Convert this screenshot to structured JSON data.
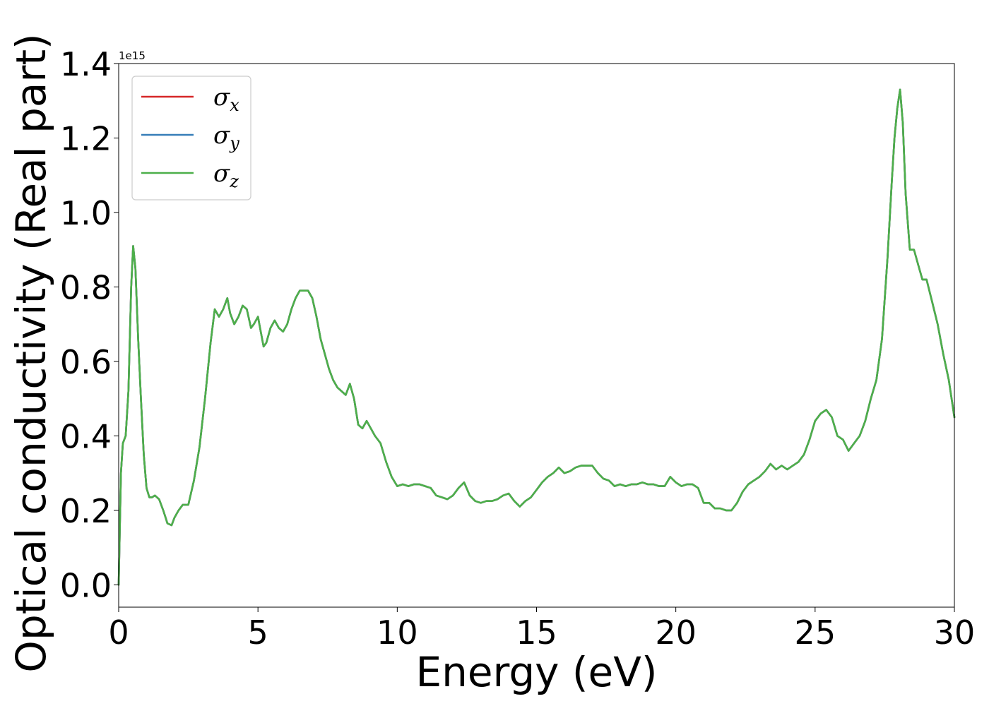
{
  "chart_data": {
    "type": "line",
    "title": "",
    "xlabel": "Energy (eV)",
    "ylabel": "Optical conductivity (Real part)",
    "y_offset_label": "1e15",
    "xlim": [
      0,
      30
    ],
    "ylim": [
      -0.06,
      1.4
    ],
    "xticks": [
      0,
      5,
      10,
      15,
      20,
      25,
      30
    ],
    "yticks": [
      0.0,
      0.2,
      0.4,
      0.6,
      0.8,
      1.0,
      1.2,
      1.4
    ],
    "xtick_labels": [
      "0",
      "5",
      "10",
      "15",
      "20",
      "25",
      "30"
    ],
    "ytick_labels": [
      "0.0",
      "0.2",
      "0.4",
      "0.6",
      "0.8",
      "1.0",
      "1.2",
      "1.4"
    ],
    "grid": false,
    "legend_position": "top-left",
    "x": [
      0.0,
      0.08,
      0.15,
      0.25,
      0.35,
      0.45,
      0.52,
      0.6,
      0.7,
      0.8,
      0.9,
      1.0,
      1.1,
      1.2,
      1.3,
      1.45,
      1.6,
      1.75,
      1.9,
      2.0,
      2.15,
      2.3,
      2.5,
      2.7,
      2.9,
      3.1,
      3.3,
      3.45,
      3.6,
      3.75,
      3.9,
      4.0,
      4.15,
      4.3,
      4.45,
      4.6,
      4.75,
      4.85,
      5.0,
      5.1,
      5.2,
      5.3,
      5.45,
      5.6,
      5.75,
      5.9,
      6.05,
      6.2,
      6.35,
      6.5,
      6.65,
      6.8,
      6.95,
      7.1,
      7.25,
      7.4,
      7.55,
      7.7,
      7.85,
      8.0,
      8.15,
      8.3,
      8.45,
      8.6,
      8.75,
      8.9,
      9.05,
      9.2,
      9.4,
      9.6,
      9.8,
      10.0,
      10.2,
      10.4,
      10.6,
      10.8,
      11.0,
      11.2,
      11.4,
      11.6,
      11.8,
      12.0,
      12.2,
      12.4,
      12.6,
      12.8,
      13.0,
      13.2,
      13.4,
      13.6,
      13.8,
      14.0,
      14.2,
      14.4,
      14.6,
      14.8,
      15.0,
      15.2,
      15.4,
      15.6,
      15.8,
      16.0,
      16.2,
      16.4,
      16.6,
      16.8,
      17.0,
      17.2,
      17.4,
      17.6,
      17.8,
      18.0,
      18.2,
      18.4,
      18.6,
      18.8,
      19.0,
      19.2,
      19.4,
      19.6,
      19.8,
      20.0,
      20.2,
      20.4,
      20.6,
      20.8,
      21.0,
      21.2,
      21.4,
      21.6,
      21.8,
      22.0,
      22.2,
      22.4,
      22.6,
      22.8,
      23.0,
      23.2,
      23.4,
      23.6,
      23.8,
      24.0,
      24.2,
      24.4,
      24.6,
      24.8,
      25.0,
      25.2,
      25.4,
      25.6,
      25.8,
      26.0,
      26.2,
      26.4,
      26.6,
      26.8,
      27.0,
      27.2,
      27.4,
      27.6,
      27.75,
      27.85,
      27.95,
      28.05,
      28.15,
      28.25,
      28.4,
      28.55,
      28.7,
      28.85,
      29.0,
      29.2,
      29.4,
      29.6,
      29.8,
      30.0
    ],
    "series": [
      {
        "name": "σx",
        "color": "#d62728",
        "values": [
          0.0,
          0.3,
          0.38,
          0.4,
          0.52,
          0.8,
          0.91,
          0.85,
          0.66,
          0.5,
          0.35,
          0.26,
          0.235,
          0.235,
          0.24,
          0.23,
          0.2,
          0.165,
          0.16,
          0.18,
          0.2,
          0.215,
          0.215,
          0.28,
          0.37,
          0.5,
          0.65,
          0.74,
          0.72,
          0.74,
          0.77,
          0.73,
          0.7,
          0.72,
          0.75,
          0.74,
          0.69,
          0.7,
          0.72,
          0.68,
          0.64,
          0.65,
          0.69,
          0.71,
          0.69,
          0.68,
          0.7,
          0.74,
          0.77,
          0.79,
          0.79,
          0.79,
          0.77,
          0.72,
          0.66,
          0.62,
          0.58,
          0.55,
          0.53,
          0.52,
          0.51,
          0.54,
          0.5,
          0.43,
          0.42,
          0.44,
          0.42,
          0.4,
          0.38,
          0.33,
          0.29,
          0.265,
          0.27,
          0.265,
          0.27,
          0.27,
          0.265,
          0.26,
          0.24,
          0.235,
          0.23,
          0.24,
          0.26,
          0.275,
          0.24,
          0.225,
          0.22,
          0.225,
          0.225,
          0.23,
          0.24,
          0.245,
          0.225,
          0.21,
          0.225,
          0.235,
          0.255,
          0.275,
          0.29,
          0.3,
          0.315,
          0.3,
          0.305,
          0.315,
          0.32,
          0.32,
          0.32,
          0.3,
          0.285,
          0.28,
          0.265,
          0.27,
          0.265,
          0.27,
          0.27,
          0.275,
          0.27,
          0.27,
          0.265,
          0.265,
          0.29,
          0.275,
          0.265,
          0.27,
          0.27,
          0.26,
          0.22,
          0.22,
          0.205,
          0.205,
          0.2,
          0.2,
          0.22,
          0.25,
          0.27,
          0.28,
          0.29,
          0.305,
          0.325,
          0.31,
          0.32,
          0.31,
          0.32,
          0.33,
          0.35,
          0.39,
          0.44,
          0.46,
          0.47,
          0.45,
          0.4,
          0.39,
          0.36,
          0.38,
          0.4,
          0.44,
          0.5,
          0.55,
          0.66,
          0.88,
          1.08,
          1.2,
          1.28,
          1.33,
          1.24,
          1.05,
          0.9,
          0.9,
          0.86,
          0.82,
          0.82,
          0.76,
          0.7,
          0.62,
          0.55,
          0.45
        ]
      },
      {
        "name": "σy",
        "color": "#377eb8",
        "values": [
          0.0,
          0.3,
          0.38,
          0.4,
          0.52,
          0.8,
          0.91,
          0.85,
          0.66,
          0.5,
          0.35,
          0.26,
          0.235,
          0.235,
          0.24,
          0.23,
          0.2,
          0.165,
          0.16,
          0.18,
          0.2,
          0.215,
          0.215,
          0.28,
          0.37,
          0.5,
          0.65,
          0.74,
          0.72,
          0.74,
          0.77,
          0.73,
          0.7,
          0.72,
          0.75,
          0.74,
          0.69,
          0.7,
          0.72,
          0.68,
          0.64,
          0.65,
          0.69,
          0.71,
          0.69,
          0.68,
          0.7,
          0.74,
          0.77,
          0.79,
          0.79,
          0.79,
          0.77,
          0.72,
          0.66,
          0.62,
          0.58,
          0.55,
          0.53,
          0.52,
          0.51,
          0.54,
          0.5,
          0.43,
          0.42,
          0.44,
          0.42,
          0.4,
          0.38,
          0.33,
          0.29,
          0.265,
          0.27,
          0.265,
          0.27,
          0.27,
          0.265,
          0.26,
          0.24,
          0.235,
          0.23,
          0.24,
          0.26,
          0.275,
          0.24,
          0.225,
          0.22,
          0.225,
          0.225,
          0.23,
          0.24,
          0.245,
          0.225,
          0.21,
          0.225,
          0.235,
          0.255,
          0.275,
          0.29,
          0.3,
          0.315,
          0.3,
          0.305,
          0.315,
          0.32,
          0.32,
          0.32,
          0.3,
          0.285,
          0.28,
          0.265,
          0.27,
          0.265,
          0.27,
          0.27,
          0.275,
          0.27,
          0.27,
          0.265,
          0.265,
          0.29,
          0.275,
          0.265,
          0.27,
          0.27,
          0.26,
          0.22,
          0.22,
          0.205,
          0.205,
          0.2,
          0.2,
          0.22,
          0.25,
          0.27,
          0.28,
          0.29,
          0.305,
          0.325,
          0.31,
          0.32,
          0.31,
          0.32,
          0.33,
          0.35,
          0.39,
          0.44,
          0.46,
          0.47,
          0.45,
          0.4,
          0.39,
          0.36,
          0.38,
          0.4,
          0.44,
          0.5,
          0.55,
          0.66,
          0.88,
          1.08,
          1.2,
          1.28,
          1.33,
          1.24,
          1.05,
          0.9,
          0.9,
          0.86,
          0.82,
          0.82,
          0.76,
          0.7,
          0.62,
          0.55,
          0.45
        ]
      },
      {
        "name": "σz",
        "color": "#4daf4a",
        "values": [
          0.0,
          0.3,
          0.38,
          0.4,
          0.52,
          0.8,
          0.91,
          0.85,
          0.66,
          0.5,
          0.35,
          0.26,
          0.235,
          0.235,
          0.24,
          0.23,
          0.2,
          0.165,
          0.16,
          0.18,
          0.2,
          0.215,
          0.215,
          0.28,
          0.37,
          0.5,
          0.65,
          0.74,
          0.72,
          0.74,
          0.77,
          0.73,
          0.7,
          0.72,
          0.75,
          0.74,
          0.69,
          0.7,
          0.72,
          0.68,
          0.64,
          0.65,
          0.69,
          0.71,
          0.69,
          0.68,
          0.7,
          0.74,
          0.77,
          0.79,
          0.79,
          0.79,
          0.77,
          0.72,
          0.66,
          0.62,
          0.58,
          0.55,
          0.53,
          0.52,
          0.51,
          0.54,
          0.5,
          0.43,
          0.42,
          0.44,
          0.42,
          0.4,
          0.38,
          0.33,
          0.29,
          0.265,
          0.27,
          0.265,
          0.27,
          0.27,
          0.265,
          0.26,
          0.24,
          0.235,
          0.23,
          0.24,
          0.26,
          0.275,
          0.24,
          0.225,
          0.22,
          0.225,
          0.225,
          0.23,
          0.24,
          0.245,
          0.225,
          0.21,
          0.225,
          0.235,
          0.255,
          0.275,
          0.29,
          0.3,
          0.315,
          0.3,
          0.305,
          0.315,
          0.32,
          0.32,
          0.32,
          0.3,
          0.285,
          0.28,
          0.265,
          0.27,
          0.265,
          0.27,
          0.27,
          0.275,
          0.27,
          0.27,
          0.265,
          0.265,
          0.29,
          0.275,
          0.265,
          0.27,
          0.27,
          0.26,
          0.22,
          0.22,
          0.205,
          0.205,
          0.2,
          0.2,
          0.22,
          0.25,
          0.27,
          0.28,
          0.29,
          0.305,
          0.325,
          0.31,
          0.32,
          0.31,
          0.32,
          0.33,
          0.35,
          0.39,
          0.44,
          0.46,
          0.47,
          0.45,
          0.4,
          0.39,
          0.36,
          0.38,
          0.4,
          0.44,
          0.5,
          0.55,
          0.66,
          0.88,
          1.08,
          1.2,
          1.28,
          1.33,
          1.24,
          1.05,
          0.9,
          0.9,
          0.86,
          0.82,
          0.82,
          0.76,
          0.7,
          0.62,
          0.55,
          0.45
        ]
      }
    ],
    "legend": [
      {
        "symbol": "σ",
        "sub": "x"
      },
      {
        "symbol": "σ",
        "sub": "y"
      },
      {
        "symbol": "σ",
        "sub": "z"
      }
    ]
  }
}
